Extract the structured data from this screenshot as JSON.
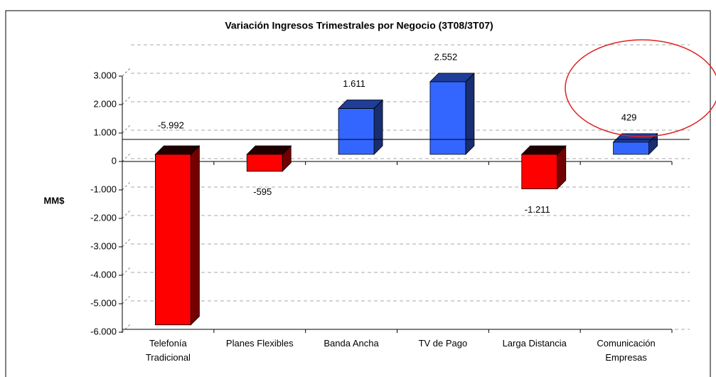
{
  "chart_data": {
    "type": "bar3d",
    "title": "Variación Ingresos Trimestrales por Negocio (3T08/3T07)",
    "y_label": "MM$",
    "categories": [
      "Telefonía Tradicional",
      "Planes Flexibles",
      "Banda Ancha",
      "TV de Pago",
      "Larga Distancia",
      "Comunicación Empresas"
    ],
    "values": [
      -5992,
      -595,
      1611,
      2552,
      -1211,
      429
    ],
    "value_labels": [
      "-5.992",
      "-595",
      "1.611",
      "2.552",
      "-1.211",
      "429"
    ],
    "positive_color": "#3366ff",
    "negative_color": "#ff0000",
    "ylim": [
      -6000,
      4000
    ],
    "yticks": [
      {
        "value": -6000,
        "label": "-6.000"
      },
      {
        "value": -5000,
        "label": "-5.000"
      },
      {
        "value": -4000,
        "label": "-4.000"
      },
      {
        "value": -3000,
        "label": "-3.000"
      },
      {
        "value": -2000,
        "label": "-2.000"
      },
      {
        "value": -1000,
        "label": "-1.000"
      },
      0,
      {
        "value": 1000,
        "label": "1.000"
      },
      {
        "value": 2000,
        "label": "2.000"
      },
      {
        "value": 3000,
        "label": "3.000"
      }
    ],
    "grid": true
  }
}
